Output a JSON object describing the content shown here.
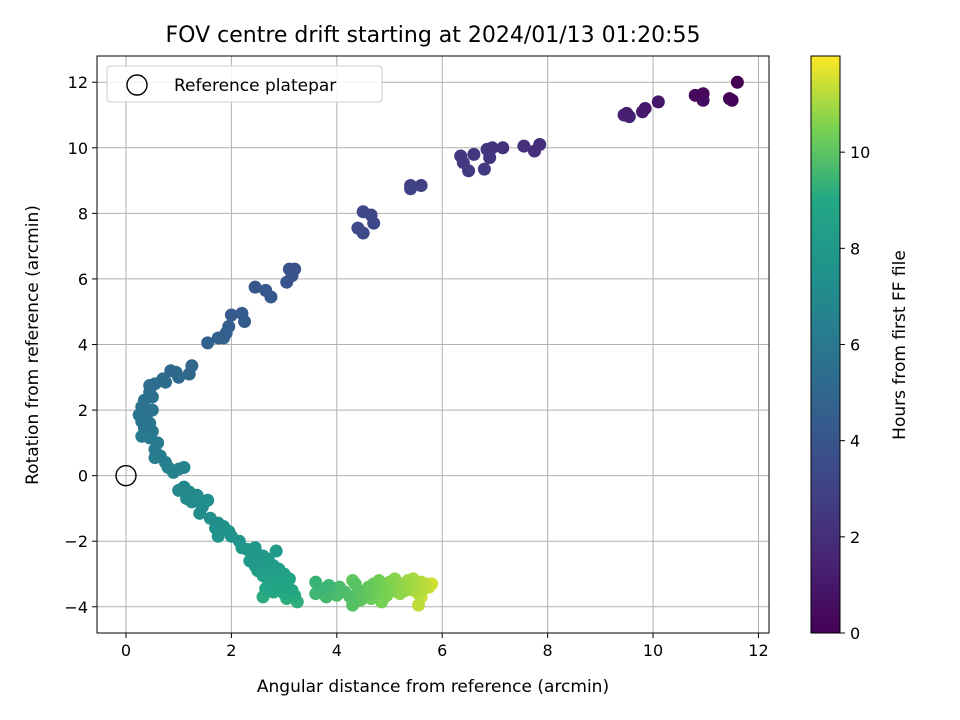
{
  "chart_data": {
    "type": "scatter",
    "title": "FOV centre drift starting at 2024/01/13 01:20:55",
    "xlabel": "Angular distance from reference (arcmin)",
    "ylabel": "Rotation from reference (arcmin)",
    "xlim": [
      -0.55,
      12.2
    ],
    "ylim": [
      -4.8,
      12.8
    ],
    "xticks": [
      0,
      2,
      4,
      6,
      8,
      10,
      12
    ],
    "yticks": [
      -4,
      -2,
      0,
      2,
      4,
      6,
      8,
      10,
      12
    ],
    "grid": true,
    "legend": {
      "placement": "top-left",
      "entries": [
        "Reference platepar"
      ]
    },
    "colorbar": {
      "label": "Hours from first FF file",
      "range": [
        0,
        12
      ],
      "ticks": [
        0,
        2,
        4,
        6,
        8,
        10
      ],
      "colormap": "viridis"
    },
    "reference_point": {
      "x": 0,
      "y": 0,
      "label": "Reference platepar"
    },
    "points": [
      {
        "x": 11.6,
        "y": 12.0,
        "h": 0.0
      },
      {
        "x": 11.45,
        "y": 11.5,
        "h": 0.1
      },
      {
        "x": 11.5,
        "y": 11.45,
        "h": 0.15
      },
      {
        "x": 10.95,
        "y": 11.65,
        "h": 0.3
      },
      {
        "x": 10.8,
        "y": 11.6,
        "h": 0.4
      },
      {
        "x": 10.95,
        "y": 11.45,
        "h": 0.5
      },
      {
        "x": 10.1,
        "y": 11.4,
        "h": 0.9
      },
      {
        "x": 9.85,
        "y": 11.2,
        "h": 1.0
      },
      {
        "x": 9.8,
        "y": 11.1,
        "h": 1.1
      },
      {
        "x": 9.5,
        "y": 11.05,
        "h": 1.3
      },
      {
        "x": 9.45,
        "y": 11.0,
        "h": 1.35
      },
      {
        "x": 9.55,
        "y": 10.95,
        "h": 1.4
      },
      {
        "x": 7.85,
        "y": 10.1,
        "h": 2.0
      },
      {
        "x": 7.75,
        "y": 9.9,
        "h": 2.05
      },
      {
        "x": 7.55,
        "y": 10.05,
        "h": 2.1
      },
      {
        "x": 7.15,
        "y": 10.0,
        "h": 2.2
      },
      {
        "x": 6.95,
        "y": 10.0,
        "h": 2.25
      },
      {
        "x": 6.85,
        "y": 9.95,
        "h": 2.3
      },
      {
        "x": 6.9,
        "y": 9.7,
        "h": 2.35
      },
      {
        "x": 6.6,
        "y": 9.8,
        "h": 2.4
      },
      {
        "x": 6.35,
        "y": 9.75,
        "h": 2.45
      },
      {
        "x": 6.4,
        "y": 9.55,
        "h": 2.5
      },
      {
        "x": 6.5,
        "y": 9.3,
        "h": 2.55
      },
      {
        "x": 6.8,
        "y": 9.35,
        "h": 2.6
      },
      {
        "x": 5.6,
        "y": 8.85,
        "h": 2.9
      },
      {
        "x": 5.4,
        "y": 8.85,
        "h": 2.95
      },
      {
        "x": 5.4,
        "y": 8.75,
        "h": 3.0
      },
      {
        "x": 4.5,
        "y": 8.05,
        "h": 3.2
      },
      {
        "x": 4.65,
        "y": 7.95,
        "h": 3.25
      },
      {
        "x": 4.7,
        "y": 7.7,
        "h": 3.3
      },
      {
        "x": 4.4,
        "y": 7.55,
        "h": 3.35
      },
      {
        "x": 4.5,
        "y": 7.4,
        "h": 3.4
      },
      {
        "x": 3.2,
        "y": 6.3,
        "h": 3.8
      },
      {
        "x": 3.1,
        "y": 6.3,
        "h": 3.85
      },
      {
        "x": 3.15,
        "y": 6.1,
        "h": 3.9
      },
      {
        "x": 3.05,
        "y": 5.9,
        "h": 3.95
      },
      {
        "x": 2.45,
        "y": 5.75,
        "h": 4.1
      },
      {
        "x": 2.65,
        "y": 5.65,
        "h": 4.15
      },
      {
        "x": 2.75,
        "y": 5.45,
        "h": 4.2
      },
      {
        "x": 2.2,
        "y": 4.95,
        "h": 4.35
      },
      {
        "x": 2.0,
        "y": 4.9,
        "h": 4.4
      },
      {
        "x": 2.25,
        "y": 4.7,
        "h": 4.45
      },
      {
        "x": 1.95,
        "y": 4.55,
        "h": 4.5
      },
      {
        "x": 1.9,
        "y": 4.35,
        "h": 4.55
      },
      {
        "x": 1.85,
        "y": 4.2,
        "h": 4.6
      },
      {
        "x": 1.75,
        "y": 4.2,
        "h": 4.65
      },
      {
        "x": 1.55,
        "y": 4.05,
        "h": 4.7
      },
      {
        "x": 1.25,
        "y": 3.35,
        "h": 4.95
      },
      {
        "x": 1.2,
        "y": 3.1,
        "h": 5.0
      },
      {
        "x": 0.95,
        "y": 3.15,
        "h": 5.05
      },
      {
        "x": 0.85,
        "y": 3.2,
        "h": 5.1
      },
      {
        "x": 1.0,
        "y": 3.0,
        "h": 5.15
      },
      {
        "x": 0.7,
        "y": 2.95,
        "h": 5.3
      },
      {
        "x": 0.75,
        "y": 2.85,
        "h": 5.35
      },
      {
        "x": 0.55,
        "y": 2.8,
        "h": 5.4
      },
      {
        "x": 0.45,
        "y": 2.75,
        "h": 5.45
      },
      {
        "x": 0.45,
        "y": 2.55,
        "h": 5.5
      },
      {
        "x": 0.5,
        "y": 2.4,
        "h": 5.55
      },
      {
        "x": 0.35,
        "y": 2.3,
        "h": 5.6
      },
      {
        "x": 0.3,
        "y": 2.1,
        "h": 5.65
      },
      {
        "x": 0.5,
        "y": 2.0,
        "h": 5.7
      },
      {
        "x": 0.4,
        "y": 1.9,
        "h": 5.75
      },
      {
        "x": 0.25,
        "y": 1.85,
        "h": 5.8
      },
      {
        "x": 0.3,
        "y": 1.65,
        "h": 5.85
      },
      {
        "x": 0.45,
        "y": 1.6,
        "h": 5.9
      },
      {
        "x": 0.35,
        "y": 1.45,
        "h": 5.95
      },
      {
        "x": 0.5,
        "y": 1.35,
        "h": 6.0
      },
      {
        "x": 0.3,
        "y": 1.2,
        "h": 6.05
      },
      {
        "x": 0.45,
        "y": 1.15,
        "h": 6.1
      },
      {
        "x": 0.6,
        "y": 1.0,
        "h": 6.15
      },
      {
        "x": 0.55,
        "y": 0.8,
        "h": 6.2
      },
      {
        "x": 0.65,
        "y": 0.6,
        "h": 6.3
      },
      {
        "x": 0.55,
        "y": 0.55,
        "h": 6.35
      },
      {
        "x": 0.75,
        "y": 0.4,
        "h": 6.45
      },
      {
        "x": 0.8,
        "y": 0.25,
        "h": 6.5
      },
      {
        "x": 1.0,
        "y": 0.2,
        "h": 6.55
      },
      {
        "x": 0.9,
        "y": 0.1,
        "h": 6.6
      },
      {
        "x": 1.1,
        "y": 0.25,
        "h": 6.65
      },
      {
        "x": 1.0,
        "y": -0.45,
        "h": 6.9
      },
      {
        "x": 1.1,
        "y": -0.35,
        "h": 6.95
      },
      {
        "x": 1.2,
        "y": -0.5,
        "h": 7.0
      },
      {
        "x": 1.15,
        "y": -0.7,
        "h": 7.05
      },
      {
        "x": 1.25,
        "y": -0.8,
        "h": 7.1
      },
      {
        "x": 1.35,
        "y": -0.6,
        "h": 7.15
      },
      {
        "x": 1.45,
        "y": -0.95,
        "h": 7.2
      },
      {
        "x": 1.4,
        "y": -1.15,
        "h": 7.25
      },
      {
        "x": 1.55,
        "y": -0.75,
        "h": 7.3
      },
      {
        "x": 1.6,
        "y": -1.3,
        "h": 7.35
      },
      {
        "x": 1.75,
        "y": -1.45,
        "h": 7.4
      },
      {
        "x": 1.7,
        "y": -1.6,
        "h": 7.45
      },
      {
        "x": 1.85,
        "y": -1.55,
        "h": 7.5
      },
      {
        "x": 1.95,
        "y": -1.7,
        "h": 7.55
      },
      {
        "x": 1.75,
        "y": -1.85,
        "h": 7.6
      },
      {
        "x": 2.0,
        "y": -1.85,
        "h": 7.65
      },
      {
        "x": 2.15,
        "y": -2.0,
        "h": 7.7
      },
      {
        "x": 2.2,
        "y": -2.2,
        "h": 7.75
      },
      {
        "x": 2.3,
        "y": -2.25,
        "h": 7.8
      },
      {
        "x": 2.45,
        "y": -2.2,
        "h": 7.85
      },
      {
        "x": 2.5,
        "y": -2.4,
        "h": 7.9
      },
      {
        "x": 2.4,
        "y": -2.5,
        "h": 7.95
      },
      {
        "x": 2.6,
        "y": -2.45,
        "h": 8.0
      },
      {
        "x": 2.35,
        "y": -2.6,
        "h": 8.05
      },
      {
        "x": 2.55,
        "y": -2.65,
        "h": 8.1
      },
      {
        "x": 2.7,
        "y": -2.55,
        "h": 8.15
      },
      {
        "x": 2.45,
        "y": -2.75,
        "h": 8.2
      },
      {
        "x": 2.65,
        "y": -2.8,
        "h": 8.25
      },
      {
        "x": 2.8,
        "y": -2.75,
        "h": 8.3
      },
      {
        "x": 2.5,
        "y": -2.9,
        "h": 8.35
      },
      {
        "x": 2.75,
        "y": -2.95,
        "h": 8.4
      },
      {
        "x": 2.9,
        "y": -2.85,
        "h": 8.45
      },
      {
        "x": 2.6,
        "y": -3.05,
        "h": 8.5
      },
      {
        "x": 2.85,
        "y": -3.1,
        "h": 8.55
      },
      {
        "x": 3.0,
        "y": -3.0,
        "h": 8.6
      },
      {
        "x": 2.7,
        "y": -3.2,
        "h": 8.65
      },
      {
        "x": 2.95,
        "y": -3.25,
        "h": 8.7
      },
      {
        "x": 3.1,
        "y": -3.15,
        "h": 8.75
      },
      {
        "x": 2.9,
        "y": -3.35,
        "h": 8.8
      },
      {
        "x": 3.05,
        "y": -3.4,
        "h": 8.85
      },
      {
        "x": 2.65,
        "y": -3.45,
        "h": 8.9
      },
      {
        "x": 3.15,
        "y": -3.5,
        "h": 8.95
      },
      {
        "x": 2.8,
        "y": -3.55,
        "h": 9.0
      },
      {
        "x": 3.0,
        "y": -3.6,
        "h": 9.05
      },
      {
        "x": 3.2,
        "y": -3.65,
        "h": 9.1
      },
      {
        "x": 2.6,
        "y": -3.7,
        "h": 9.15
      },
      {
        "x": 3.05,
        "y": -3.75,
        "h": 9.2
      },
      {
        "x": 3.25,
        "y": -3.85,
        "h": 9.25
      },
      {
        "x": 2.85,
        "y": -2.3,
        "h": 8.0
      },
      {
        "x": 3.6,
        "y": -3.25,
        "h": 9.4
      },
      {
        "x": 3.7,
        "y": -3.45,
        "h": 9.45
      },
      {
        "x": 3.85,
        "y": -3.35,
        "h": 9.5
      },
      {
        "x": 3.6,
        "y": -3.6,
        "h": 9.55
      },
      {
        "x": 3.8,
        "y": -3.7,
        "h": 9.6
      },
      {
        "x": 3.9,
        "y": -3.5,
        "h": 9.65
      },
      {
        "x": 4.05,
        "y": -3.4,
        "h": 9.7
      },
      {
        "x": 4.0,
        "y": -3.65,
        "h": 9.75
      },
      {
        "x": 4.15,
        "y": -3.55,
        "h": 9.8
      },
      {
        "x": 4.25,
        "y": -3.7,
        "h": 9.85
      },
      {
        "x": 4.3,
        "y": -3.95,
        "h": 9.9
      },
      {
        "x": 4.35,
        "y": -3.3,
        "h": 9.95
      },
      {
        "x": 4.4,
        "y": -3.5,
        "h": 10.0
      },
      {
        "x": 4.45,
        "y": -3.8,
        "h": 10.05
      },
      {
        "x": 4.3,
        "y": -3.2,
        "h": 10.1
      },
      {
        "x": 4.55,
        "y": -3.6,
        "h": 10.15
      },
      {
        "x": 4.6,
        "y": -3.4,
        "h": 10.2
      },
      {
        "x": 4.65,
        "y": -3.75,
        "h": 10.25
      },
      {
        "x": 4.7,
        "y": -3.3,
        "h": 10.3
      },
      {
        "x": 4.75,
        "y": -3.55,
        "h": 10.35
      },
      {
        "x": 4.8,
        "y": -3.2,
        "h": 10.4
      },
      {
        "x": 4.85,
        "y": -3.85,
        "h": 10.45
      },
      {
        "x": 4.9,
        "y": -3.45,
        "h": 10.5
      },
      {
        "x": 4.95,
        "y": -3.65,
        "h": 10.55
      },
      {
        "x": 5.0,
        "y": -3.25,
        "h": 10.6
      },
      {
        "x": 5.05,
        "y": -3.5,
        "h": 10.65
      },
      {
        "x": 5.1,
        "y": -3.15,
        "h": 10.7
      },
      {
        "x": 5.15,
        "y": -3.4,
        "h": 10.75
      },
      {
        "x": 5.2,
        "y": -3.6,
        "h": 10.8
      },
      {
        "x": 5.25,
        "y": -3.3,
        "h": 10.85
      },
      {
        "x": 5.3,
        "y": -3.5,
        "h": 10.9
      },
      {
        "x": 5.35,
        "y": -3.2,
        "h": 10.95
      },
      {
        "x": 5.4,
        "y": -3.45,
        "h": 11.0
      },
      {
        "x": 5.45,
        "y": -3.15,
        "h": 11.05
      },
      {
        "x": 5.5,
        "y": -3.35,
        "h": 11.1
      },
      {
        "x": 5.55,
        "y": -3.6,
        "h": 11.15
      },
      {
        "x": 5.6,
        "y": -3.25,
        "h": 11.2
      },
      {
        "x": 5.65,
        "y": -3.45,
        "h": 11.25
      },
      {
        "x": 5.55,
        "y": -3.95,
        "h": 11.3
      },
      {
        "x": 5.7,
        "y": -3.3,
        "h": 11.35
      },
      {
        "x": 5.75,
        "y": -3.4,
        "h": 11.4
      },
      {
        "x": 5.6,
        "y": -3.7,
        "h": 11.45
      },
      {
        "x": 5.8,
        "y": -3.3,
        "h": 11.55
      },
      {
        "x": 4.9,
        "y": -3.7,
        "h": 10.5
      },
      {
        "x": 5.15,
        "y": -3.55,
        "h": 10.8
      },
      {
        "x": 5.45,
        "y": -3.5,
        "h": 11.1
      }
    ]
  }
}
